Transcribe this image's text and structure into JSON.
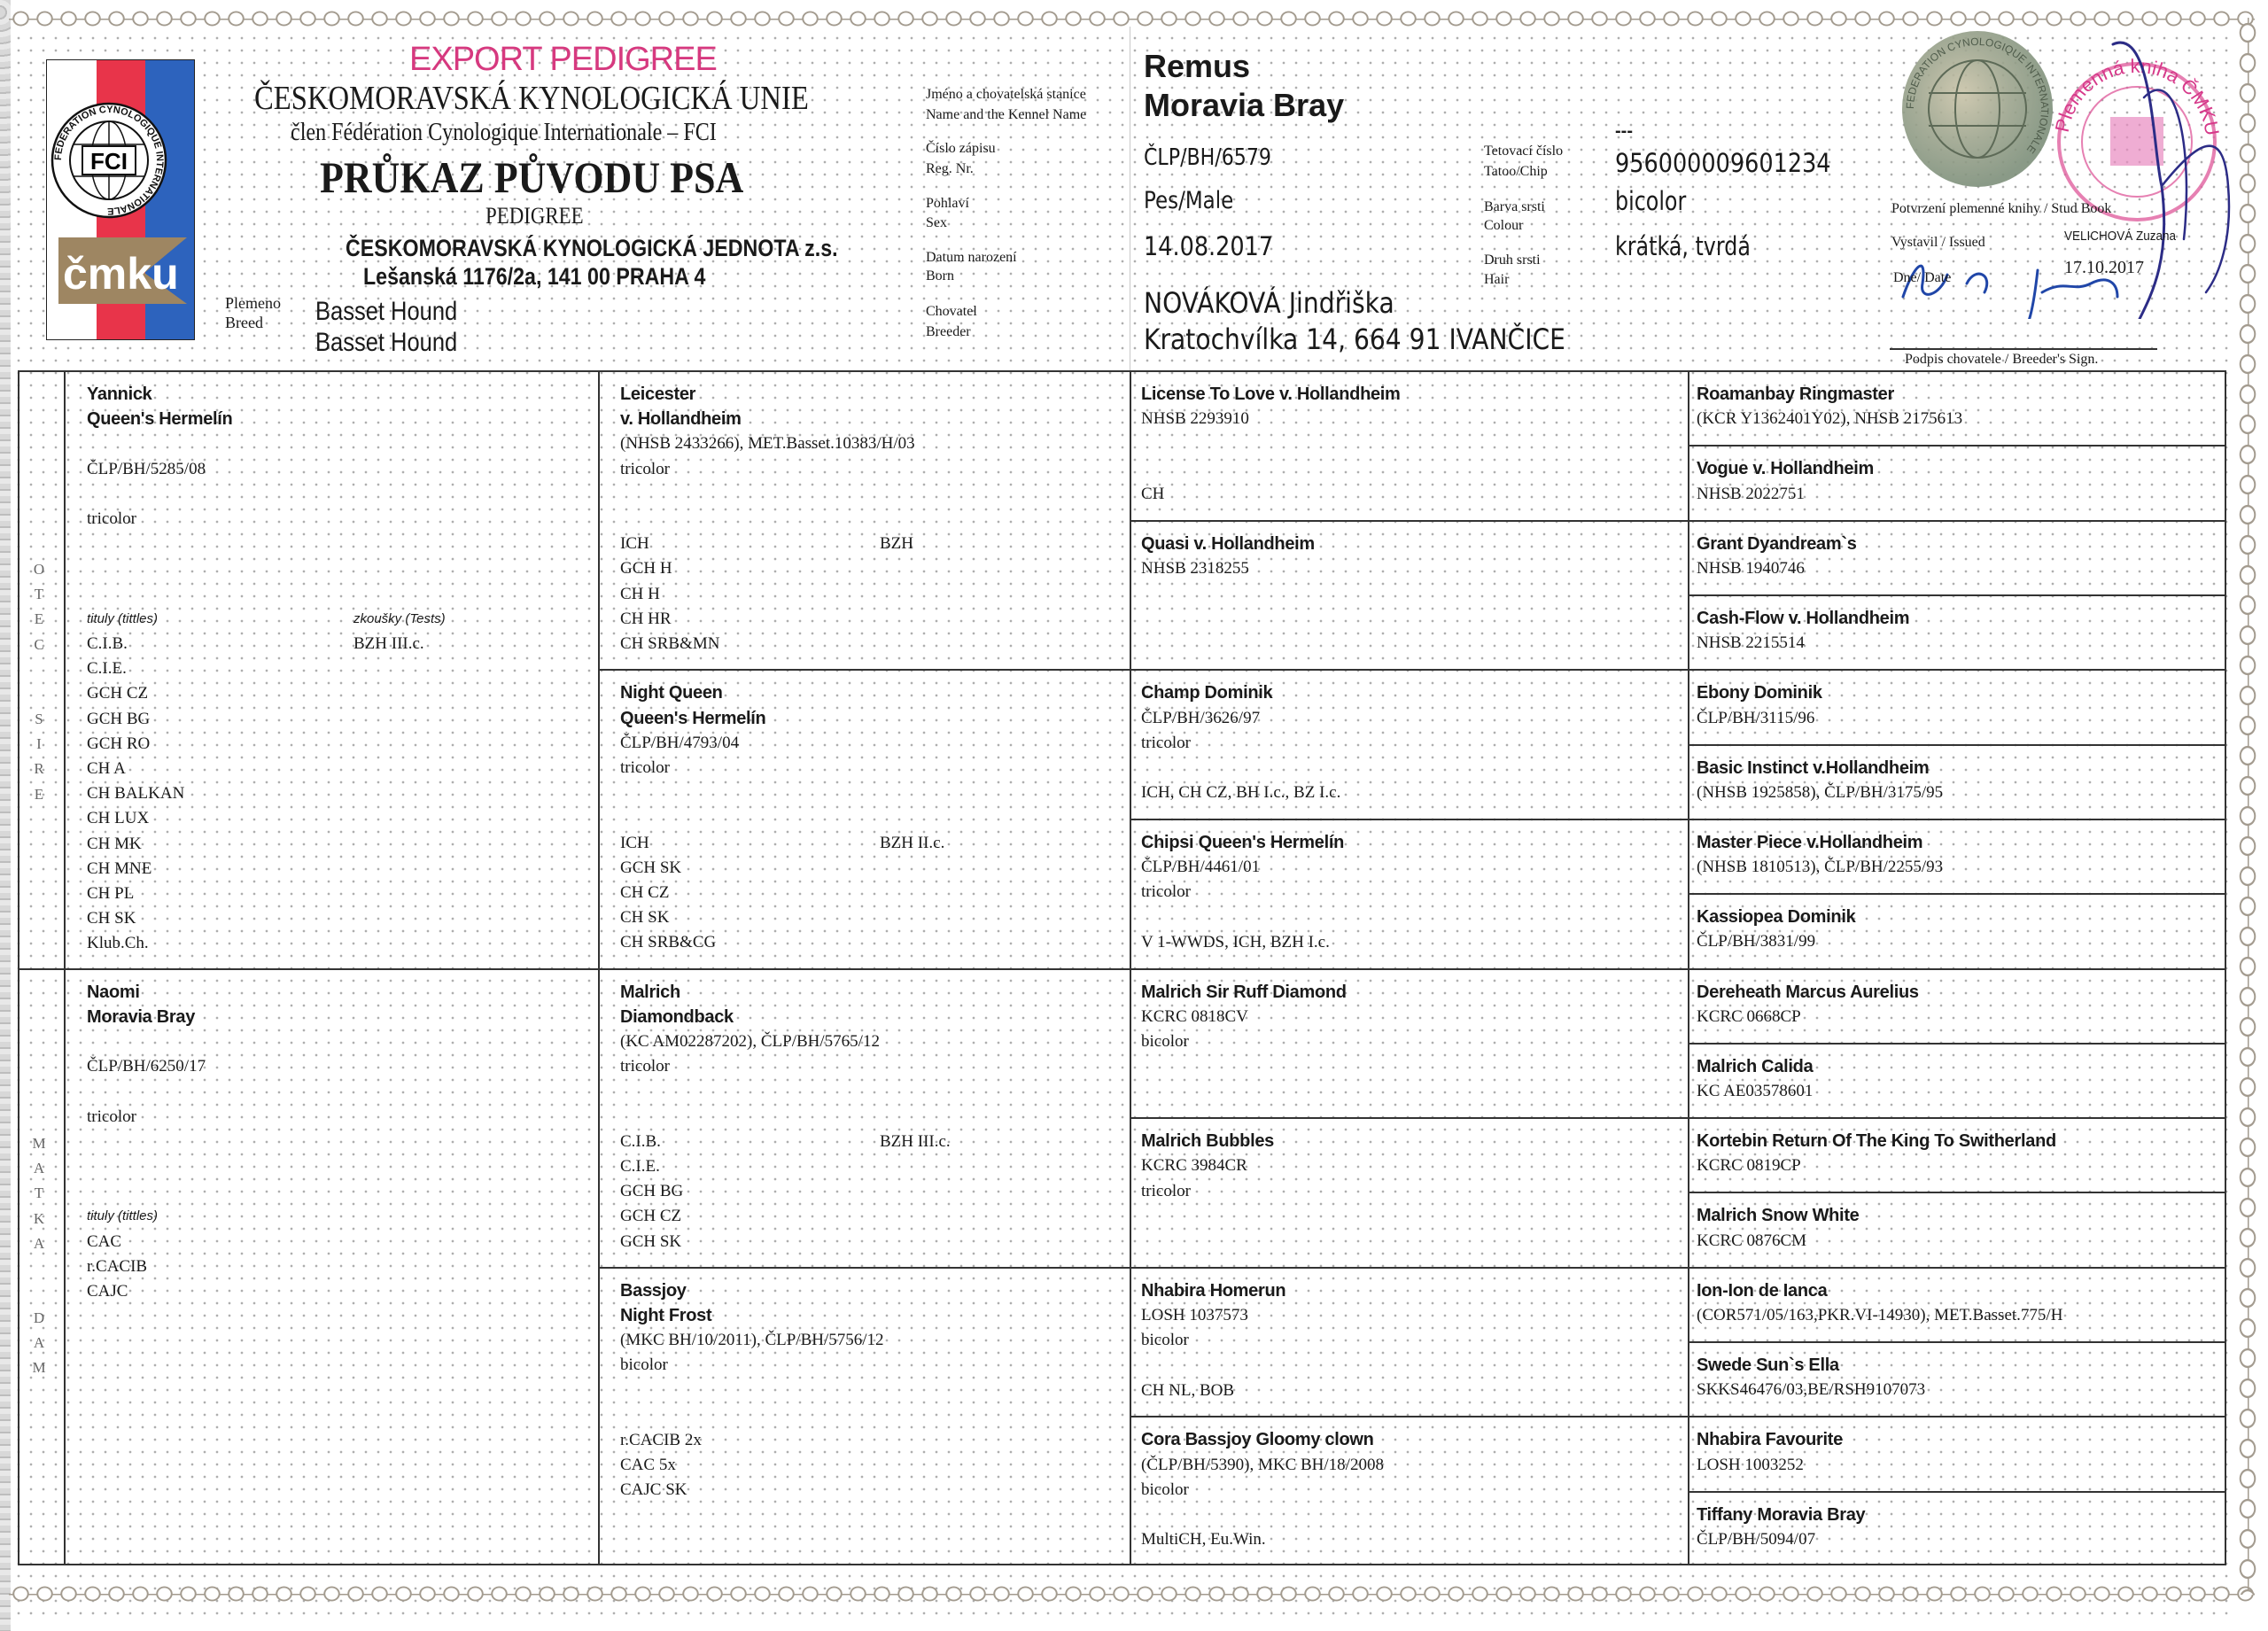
{
  "header": {
    "export_label": "EXPORT PEDIGREE",
    "org_name": "ČESKOMORAVSKÁ KYNOLOGICKÁ UNIE",
    "fci_member": "člen Fédération Cynologique Internationale – FCI",
    "title": "PRŮKAZ PŮVODU PSA",
    "subtitle": "PEDIGREE",
    "club_name": "ČESKOMORAVSKÁ KYNOLOGICKÁ JEDNOTA z.s.",
    "club_address": "Lešanská 1176/2a, 141 00 PRAHA 4",
    "breed_label_cz": "Plemeno",
    "breed_label_en": "Breed",
    "breed_cz": "Basset Hound",
    "breed_en": "Basset Hound",
    "logo_fci_text": "FCI",
    "logo_fci_ring": "FEDERATION CYNOLOGIQUE INTERNATIONALE",
    "logo_cmku_text": "čmku",
    "colors": {
      "export": "#d6397f",
      "flag_red": "#e8344a",
      "flag_blue": "#2d63bd",
      "cmku_brown": "#9e8662"
    }
  },
  "labels": {
    "name_cz": "Jméno a chovatelská stanice",
    "name_en": "Name and the Kennel Name",
    "reg_cz": "Číslo zápisu",
    "reg_en": "Reg. Nr.",
    "sex_cz": "Pohlaví",
    "sex_en": "Sex",
    "born_cz": "Datum narození",
    "born_en": "Born",
    "breeder_cz": "Chovatel",
    "breeder_en": "Breeder",
    "tattoo_cz": "Tetovací číslo",
    "tattoo_en": "Tatoo/Chip",
    "colour_cz": "Barva srsti",
    "colour_en": "Colour",
    "hair_cz": "Druh srsti",
    "hair_en": "Hair"
  },
  "dog": {
    "name": "Remus",
    "kennel": "Moravia Bray",
    "reg_no": "ČLP/BH/6579",
    "sex": "Pes/Male",
    "born": "14.08.2017",
    "breeder_name": "NOVÁKOVÁ Jindřiška",
    "breeder_address": "Kratochvílka 14, 664 91 IVANČICE",
    "tattoo": "---",
    "chip": "956000009601234",
    "colour": "bicolor",
    "hair": "krátká, tvrdá"
  },
  "studbook": {
    "confirm_label": "Potvrzení plemenné knihy / Stud Book",
    "issued_label": "Vystavil / Issued",
    "issued_by": "VELICHOVÁ Zuzana",
    "date_label": "Dne/ Date",
    "date": "17.10.2017",
    "sign_label": "Podpis chovatele / Breeder's Sign.",
    "stamp_text": "Plemenná kniha ČMKU",
    "seal_text": "FEDERATION CYNOLOGIQUE INTERNATIONALE"
  },
  "pedigree": {
    "sire_label": [
      "O",
      "T",
      "E",
      "C"
    ],
    "sire_label_en": [
      "S",
      "I",
      "R",
      "E"
    ],
    "dam_label": [
      "M",
      "A",
      "T",
      "K",
      "A"
    ],
    "dam_label_en": [
      "D",
      "A",
      "M"
    ],
    "titles_label": "tituly (tittles)",
    "tests_label": "zkoušky (Tests)",
    "gen1": [
      {
        "name": "Yannick",
        "kennel": "Queen's Hermelín",
        "reg": "ČLP/BH/5285/08",
        "color": "tricolor",
        "titles": [
          "C.I.B.",
          "C.I.E.",
          "GCH CZ",
          "GCH BG",
          "GCH RO",
          "CH A",
          "CH BALKAN",
          "CH LUX",
          "CH MK",
          "CH MNE",
          "CH PL",
          "CH SK",
          "Klub.Ch."
        ],
        "tests": [
          "BZH III.c."
        ],
        "show_tests_label": true
      },
      {
        "name": "Naomi",
        "kennel": "Moravia Bray",
        "reg": "ČLP/BH/6250/17",
        "color": "tricolor",
        "titles": [
          "CAC",
          "r.CACIB",
          "CAJC"
        ],
        "tests": [],
        "show_tests_label": false
      }
    ],
    "gen2": [
      {
        "name": "Leicester",
        "kennel": "v. Hollandheim",
        "reg": "(NHSB 2433266), MET.Basset.10383/H/03",
        "color": "tricolor",
        "titles": [
          "ICH",
          "GCH H",
          "CH H",
          "CH HR",
          "CH SRB&MN"
        ],
        "tests": [
          "BZH"
        ]
      },
      {
        "name": "Night Queen",
        "kennel": "Queen's Hermelín",
        "reg": "ČLP/BH/4793/04",
        "color": "tricolor",
        "titles": [
          "ICH",
          "GCH SK",
          "CH CZ",
          "CH SK",
          "CH SRB&CG"
        ],
        "tests": [
          "BZH II.c."
        ]
      },
      {
        "name": "Malrich",
        "kennel": "Diamondback",
        "reg": "(KC AM02287202), ČLP/BH/5765/12",
        "color": "tricolor",
        "titles": [
          "C.I.B.",
          "C.I.E.",
          "GCH BG",
          "GCH CZ",
          "GCH SK"
        ],
        "tests": [
          "BZH III.c."
        ]
      },
      {
        "name": "Bassjoy",
        "kennel": "Night Frost",
        "reg": "(MKC BH/10/2011), ČLP/BH/5756/12",
        "color": "bicolor",
        "titles": [
          "r.CACIB 2x",
          "CAC 5x",
          "CAJC SK"
        ],
        "tests": []
      }
    ],
    "gen3": [
      {
        "name": "License To Love v. Hollandheim",
        "reg": "NHSB 2293910",
        "color": "",
        "titles": "CH"
      },
      {
        "name": "Quasi v. Hollandheim",
        "reg": "NHSB 2318255",
        "color": "",
        "titles": ""
      },
      {
        "name": "Champ Dominik",
        "reg": "ČLP/BH/3626/97",
        "color": "tricolor",
        "titles": "ICH, CH CZ, BH I.c., BZ I.c."
      },
      {
        "name": "Chipsi Queen's Hermelín",
        "reg": "ČLP/BH/4461/01",
        "color": "tricolor",
        "titles": "V 1-WWDS, ICH, BZH I.c."
      },
      {
        "name": "Malrich Sir Ruff Diamond",
        "reg": "KCRC 0818CV",
        "color": "bicolor",
        "titles": ""
      },
      {
        "name": "Malrich Bubbles",
        "reg": "KCRC 3984CR",
        "color": "tricolor",
        "titles": ""
      },
      {
        "name": "Nhabira Homerun",
        "reg": "LOSH 1037573",
        "color": "bicolor",
        "titles": "CH NL, BOB"
      },
      {
        "name": "Cora Bassjoy Gloomy clown",
        "reg": "(ČLP/BH/5390), MKC BH/18/2008",
        "color": "bicolor",
        "titles": "MultiCH, Eu.Win."
      }
    ],
    "gen4": [
      {
        "name": "Roamanbay Ringmaster",
        "reg": "(KCR Y1362401Y02), NHSB 2175613"
      },
      {
        "name": "Vogue v. Hollandheim",
        "reg": "NHSB 2022751"
      },
      {
        "name": "Grant Dyandream`s",
        "reg": "NHSB 1940746"
      },
      {
        "name": "Cash-Flow v. Hollandheim",
        "reg": "NHSB 2215514"
      },
      {
        "name": "Ebony Dominik",
        "reg": "ČLP/BH/3115/96"
      },
      {
        "name": "Basic Instinct v.Hollandheim",
        "reg": "(NHSB 1925858), ČLP/BH/3175/95"
      },
      {
        "name": "Master Piece v.Hollandheim",
        "reg": "(NHSB 1810513), ČLP/BH/2255/93"
      },
      {
        "name": "Kassiopea Dominik",
        "reg": "ČLP/BH/3831/99"
      },
      {
        "name": "Dereheath Marcus Aurelius",
        "reg": "KCRC 0668CP"
      },
      {
        "name": "Malrich Calida",
        "reg": "KC AE03578601"
      },
      {
        "name": "Kortebin Return Of The King To Switherland",
        "reg": "KCRC 0819CP"
      },
      {
        "name": "Malrich Snow White",
        "reg": "KCRC 0876CM"
      },
      {
        "name": "Ion-Ion de Ianca",
        "reg": "(COR571/05/163,PKR.VI-14930), MET.Basset.775/H"
      },
      {
        "name": "Swede Sun`s Ella",
        "reg": "SKKS46476/03,BE/RSH9107073"
      },
      {
        "name": "Nhabira Favourite",
        "reg": "LOSH 1003252"
      },
      {
        "name": "Tiffany Moravia Bray",
        "reg": "ČLP/BH/5094/07"
      }
    ]
  }
}
